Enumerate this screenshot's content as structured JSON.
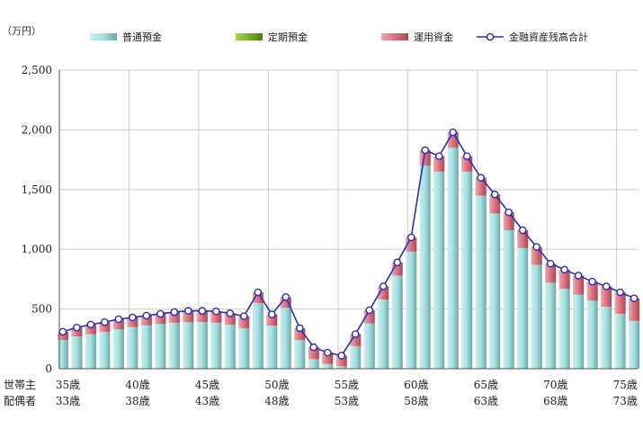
{
  "chart_data": {
    "type": "bar",
    "unit_label": "（万円）",
    "ylim": [
      0,
      2500
    ],
    "y_ticks": [
      0,
      500,
      1000,
      1500,
      2000,
      2500
    ],
    "y_tick_labels": [
      "0",
      "500",
      "1,000",
      "1,500",
      "2,000",
      "2,500"
    ],
    "grid": true,
    "stacked": true,
    "legend_position": "top",
    "x_row_labels": [
      "世帯主",
      "配偶者"
    ],
    "x_tick_labels_row1": [
      "35歳",
      "40歳",
      "45歳",
      "50歳",
      "55歳",
      "60歳",
      "65歳",
      "70歳",
      "75歳"
    ],
    "x_tick_labels_row2": [
      "33歳",
      "38歳",
      "43歳",
      "48歳",
      "53歳",
      "58歳",
      "63歳",
      "68歳",
      "73歳"
    ],
    "age_start": 35,
    "age_end": 75,
    "series": [
      {
        "name": "普通預金",
        "color": "#a9e3e3",
        "values": [
          240,
          270,
          290,
          310,
          330,
          350,
          365,
          375,
          385,
          390,
          390,
          385,
          370,
          340,
          550,
          360,
          510,
          240,
          80,
          40,
          20,
          190,
          380,
          580,
          780,
          980,
          1700,
          1650,
          1850,
          1650,
          1450,
          1300,
          1160,
          1010,
          870,
          720,
          670,
          620,
          570,
          520,
          460,
          400
        ]
      },
      {
        "name": "定期預金",
        "color": "#7ab51d",
        "values": [
          0,
          0,
          0,
          0,
          0,
          0,
          0,
          0,
          0,
          0,
          0,
          0,
          0,
          0,
          0,
          0,
          0,
          0,
          0,
          0,
          0,
          0,
          0,
          0,
          0,
          0,
          0,
          0,
          0,
          0,
          0,
          0,
          0,
          0,
          0,
          0,
          0,
          0,
          0,
          0,
          0,
          0
        ]
      },
      {
        "name": "運用資金",
        "color": "#d9727e",
        "values": [
          70,
          75,
          80,
          80,
          85,
          80,
          80,
          85,
          90,
          95,
          95,
          95,
          95,
          100,
          90,
          95,
          90,
          100,
          100,
          95,
          90,
          100,
          110,
          110,
          110,
          120,
          130,
          130,
          130,
          130,
          150,
          160,
          150,
          150,
          150,
          160,
          160,
          160,
          160,
          170,
          180,
          190
        ]
      }
    ],
    "total_series": {
      "name": "金融資産残高合計",
      "color": "#2a2fb8",
      "values": [
        310,
        345,
        370,
        390,
        415,
        430,
        445,
        460,
        475,
        485,
        485,
        480,
        465,
        440,
        640,
        455,
        600,
        340,
        180,
        135,
        110,
        290,
        490,
        690,
        890,
        1100,
        1830,
        1780,
        1980,
        1780,
        1600,
        1460,
        1310,
        1160,
        1020,
        880,
        830,
        780,
        730,
        690,
        640,
        590
      ]
    }
  }
}
